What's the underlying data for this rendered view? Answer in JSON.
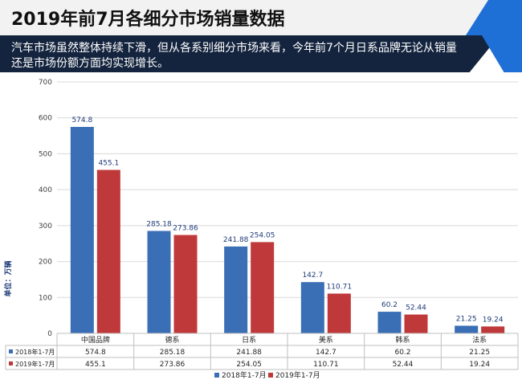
{
  "header": {
    "title": "2019年前7月各细分市场销量数据",
    "subtitle": "汽车市场虽然整体持续下滑，但从各系别细分市场来看，今年前7个月日系品牌无论从销量还是市场份额方面均实现增长。"
  },
  "colors": {
    "accent": "#1e6fd6",
    "band": "#14243e",
    "series1": "#3a6fb5",
    "series2": "#c0393a"
  },
  "chart_data": {
    "type": "bar",
    "ylabel": "单位：万辆",
    "ylim": [
      0,
      700
    ],
    "yticks": [
      0,
      100,
      200,
      300,
      400,
      500,
      600,
      700
    ],
    "categories": [
      "中国品牌",
      "德系",
      "日系",
      "美系",
      "韩系",
      "法系"
    ],
    "series": [
      {
        "name": "2018年1-7月",
        "values": [
          "574.8",
          "285.18",
          "241.88",
          "142.7",
          "60.2",
          "21.25"
        ]
      },
      {
        "name": "2019年1-7月",
        "values": [
          "455.1",
          "273.86",
          "254.05",
          "110.71",
          "52.44",
          "19.24"
        ]
      }
    ],
    "grid": true,
    "legend": "bottom",
    "data_table": true
  }
}
